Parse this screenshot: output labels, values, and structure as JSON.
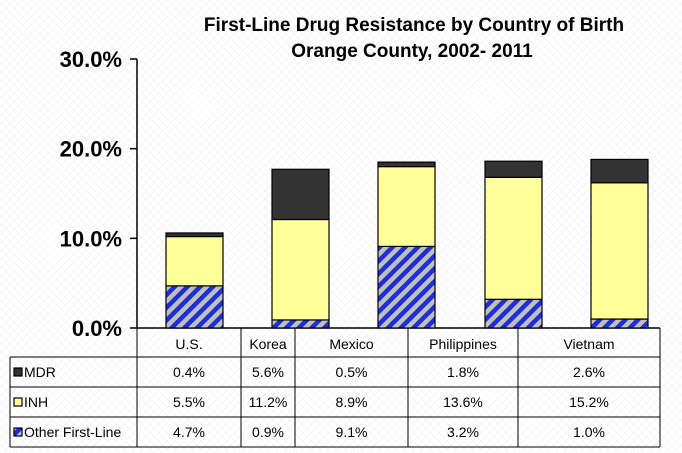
{
  "colors": {
    "MDR": "#333333",
    "INH": "#ffff99",
    "Other First-Line": "hatch-blue-gray"
  },
  "chart_data": {
    "type": "bar",
    "stacked": true,
    "title": "First-Line Drug Resistance by Country of Birth",
    "subtitle": "Orange County, 2002- 2011",
    "categories": [
      "U.S.",
      "Korea",
      "Mexico",
      "Philippines",
      "Vietnam"
    ],
    "series": [
      {
        "name": "Other First-Line",
        "values": [
          4.7,
          0.9,
          9.1,
          3.2,
          1.0
        ],
        "labels": [
          "4.7%",
          "0.9%",
          "9.1%",
          "3.2%",
          "1.0%"
        ]
      },
      {
        "name": "INH",
        "values": [
          5.5,
          11.2,
          8.9,
          13.6,
          15.2
        ],
        "labels": [
          "5.5%",
          "11.2%",
          "8.9%",
          "13.6%",
          "15.2%"
        ]
      },
      {
        "name": "MDR",
        "values": [
          0.4,
          5.6,
          0.5,
          1.8,
          2.6
        ],
        "labels": [
          "0.4%",
          "5.6%",
          "0.5%",
          "1.8%",
          "2.6%"
        ]
      }
    ],
    "yticks": [
      "0.0%",
      "10.0%",
      "20.0%",
      "30.0%"
    ],
    "ylim": [
      0,
      30
    ],
    "xlabel": "",
    "ylabel": "",
    "legend": "data-table"
  }
}
